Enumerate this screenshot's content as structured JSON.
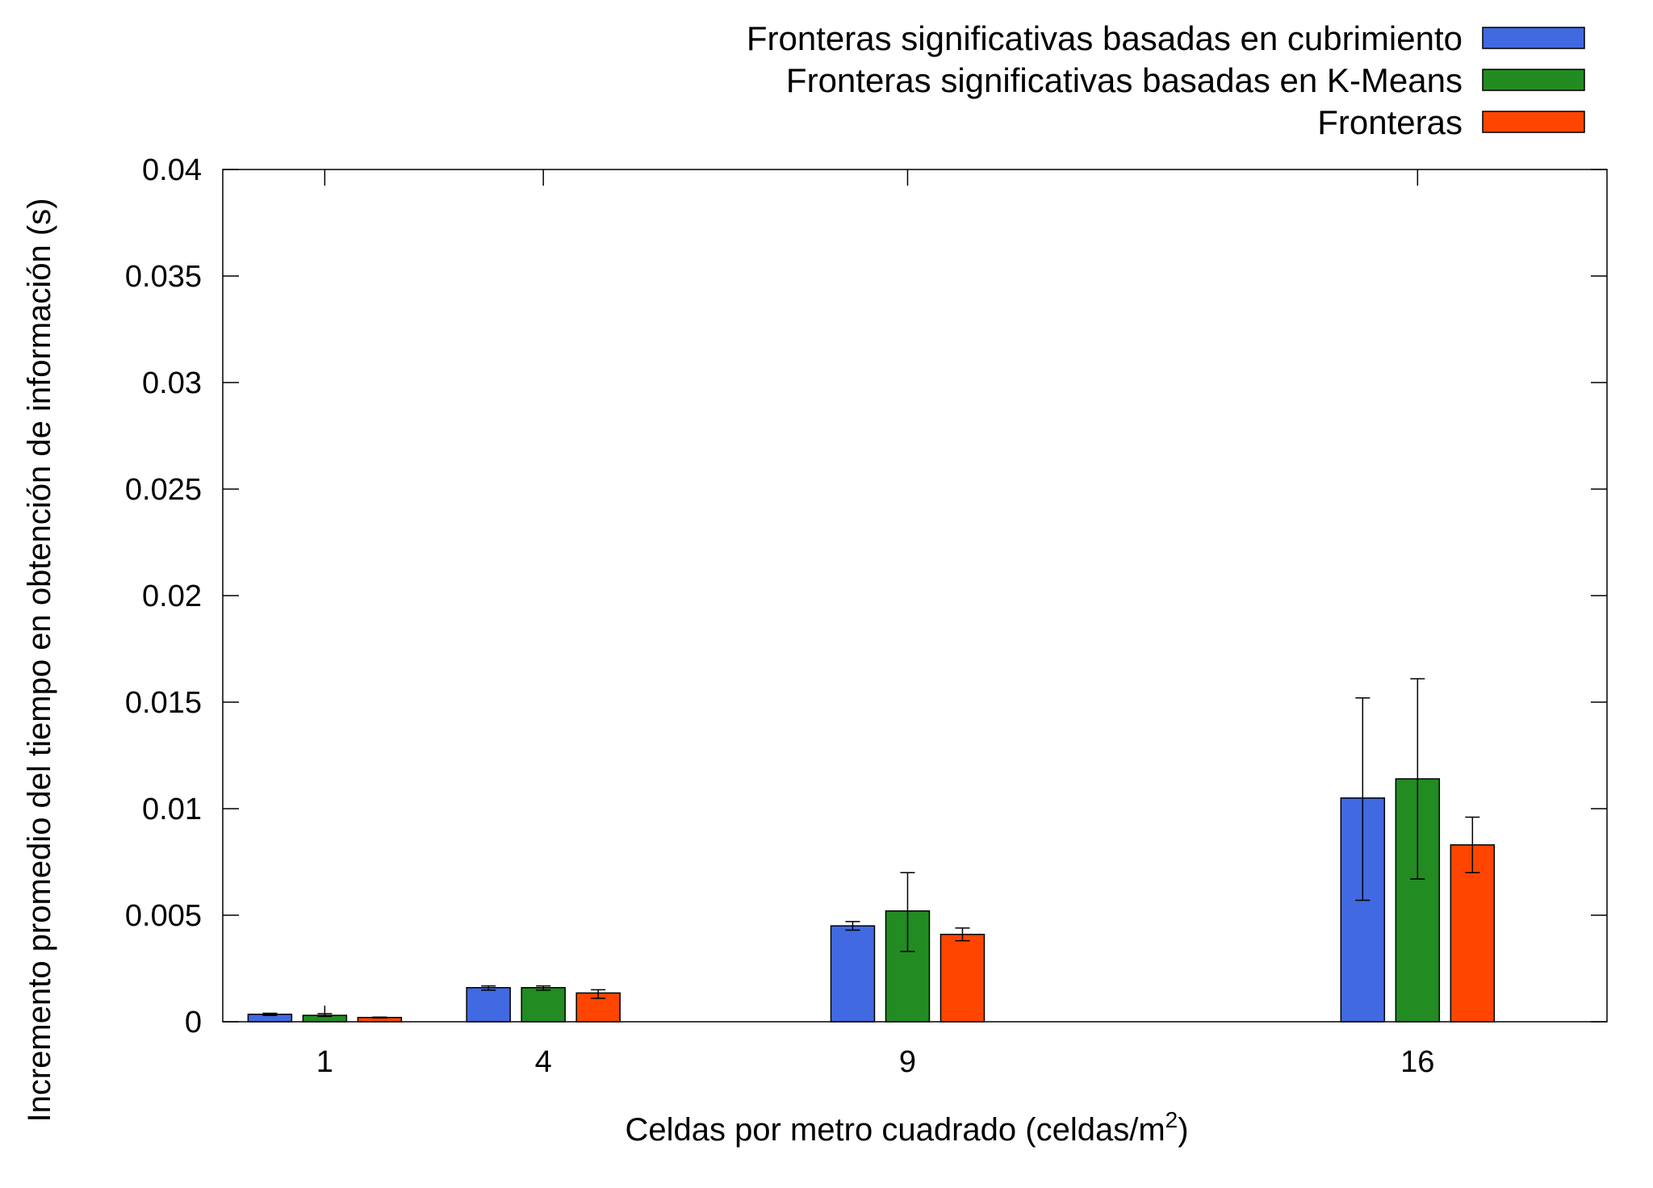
{
  "chart_data": {
    "type": "bar",
    "xlabel": "Celdas por metro cuadrado (celdas/m",
    "xlabel_superscript": "2",
    "xlabel_suffix": ")",
    "ylabel": "Incremento promedio del tiempo en obtención de información (s)",
    "x": [
      1,
      4,
      9,
      16
    ],
    "x_tick_labels": [
      "1",
      "4",
      "9",
      "16"
    ],
    "ylim": [
      0,
      0.04
    ],
    "y_ticks": [
      0,
      0.005,
      0.01,
      0.015,
      0.02,
      0.025,
      0.03,
      0.035,
      0.04
    ],
    "y_tick_labels": [
      "0",
      "0.005",
      "0.01",
      "0.015",
      "0.02",
      "0.025",
      "0.03",
      "0.035",
      "0.04"
    ],
    "legend_position": "top-right, outside plot",
    "grid": false,
    "error_bars": true,
    "series": [
      {
        "name": "Fronteras significativas basadas en cubrimiento",
        "color": "#4169E1",
        "values": [
          0.00035,
          0.0016,
          0.0045,
          0.0105
        ],
        "error_low": [
          0.0003,
          0.00148,
          0.0043,
          0.0057
        ],
        "error_high": [
          0.0004,
          0.00168,
          0.0047,
          0.0152
        ]
      },
      {
        "name": "Fronteras significativas basadas en K-Means",
        "color": "#228B22",
        "values": [
          0.0003,
          0.0016,
          0.0052,
          0.0114
        ],
        "error_low": [
          0.00025,
          0.00148,
          0.0033,
          0.0067
        ],
        "error_high": [
          0.00038,
          0.00168,
          0.007,
          0.0161
        ]
      },
      {
        "name": "Fronteras",
        "color": "#FF4500",
        "values": [
          0.0002,
          0.00135,
          0.0041,
          0.0083
        ],
        "error_low": [
          0.00018,
          0.0011,
          0.0038,
          0.007
        ],
        "error_high": [
          0.00022,
          0.0015,
          0.0044,
          0.0096
        ]
      }
    ]
  }
}
